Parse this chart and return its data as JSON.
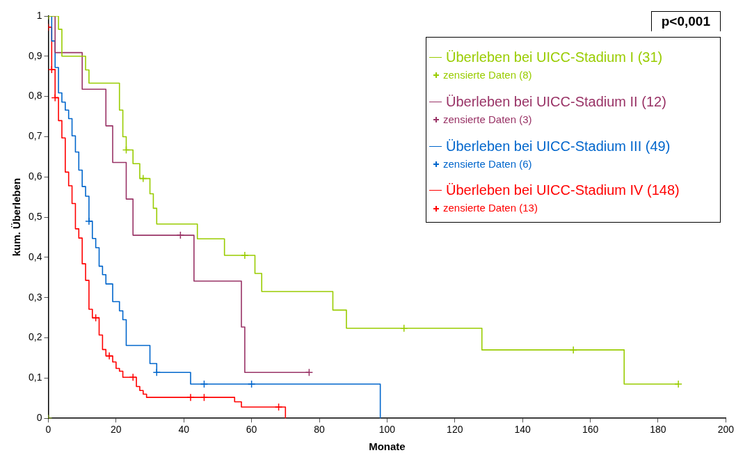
{
  "chart_data": {
    "type": "step",
    "xlabel": "Monate",
    "ylabel": "kum. Überleben",
    "annotations": [
      "p<0,001"
    ],
    "xlim": [
      0,
      200
    ],
    "xticks": [
      0,
      20,
      40,
      60,
      80,
      100,
      120,
      140,
      160,
      180,
      200
    ],
    "ylim": [
      0,
      1
    ],
    "yticks": [
      0,
      {
        "value": 0.1,
        "label": "0,1"
      },
      {
        "value": 0.2,
        "label": "0,2"
      },
      {
        "value": 0.3,
        "label": "0,3"
      },
      {
        "value": 0.4,
        "label": "0,4"
      },
      {
        "value": 0.5,
        "label": "0,5"
      },
      {
        "value": 0.6,
        "label": "0,6"
      },
      {
        "value": 0.7,
        "label": "0,7"
      },
      {
        "value": 0.8,
        "label": "0,8"
      },
      {
        "value": 0.9,
        "label": "0,9"
      },
      1
    ],
    "grid": false,
    "legend": "top right",
    "series": [
      {
        "name": "Überleben bei UICC-Stadium I (31)",
        "color": "#99cc00",
        "marker": "none",
        "x": [
          0,
          3,
          4,
          11,
          12,
          21,
          22,
          23,
          25,
          27,
          30,
          31,
          32,
          44,
          52,
          61,
          63,
          84,
          88,
          128,
          170,
          186
        ],
        "values": [
          1,
          0.967,
          0.9,
          0.866,
          0.833,
          0.766,
          0.7,
          0.667,
          0.633,
          0.596,
          0.558,
          0.522,
          0.483,
          0.446,
          0.405,
          0.36,
          0.315,
          0.269,
          0.224,
          0.17,
          0.085,
          0.085
        ]
      },
      {
        "type": "scatter",
        "name": "zensierte Daten (8)",
        "color": "#99cc00",
        "marker": "cross",
        "x": [
          0,
          0,
          23,
          28,
          58,
          105,
          155,
          186
        ],
        "values": [
          0,
          1,
          0.667,
          0.596,
          0.405,
          0.224,
          0.17,
          0.085
        ]
      },
      {
        "name": "Überleben bei UICC-Stadium II (12)",
        "color": "#993366",
        "marker": "none",
        "x": [
          0,
          2,
          10,
          17,
          19,
          23,
          25,
          43,
          57,
          58,
          77
        ],
        "values": [
          1,
          0.909,
          0.818,
          0.727,
          0.636,
          0.545,
          0.455,
          0.341,
          0.227,
          0.114,
          0.114
        ]
      },
      {
        "type": "scatter",
        "name": "zensierte Daten (3)",
        "color": "#993366",
        "marker": "cross",
        "x": [
          39,
          77
        ],
        "values": [
          0.455,
          0.114
        ]
      },
      {
        "name": "Überleben bei UICC-Stadium III (49)",
        "color": "#0066cc",
        "marker": "none",
        "x": [
          0,
          1,
          2,
          3,
          4,
          5,
          6,
          7,
          8,
          9,
          10,
          11,
          12,
          13,
          14,
          15,
          16,
          17,
          19,
          21,
          22,
          23,
          30,
          32,
          42,
          98
        ],
        "values": [
          1,
          0.938,
          0.872,
          0.809,
          0.786,
          0.766,
          0.745,
          0.702,
          0.662,
          0.617,
          0.576,
          0.552,
          0.49,
          0.447,
          0.424,
          0.378,
          0.357,
          0.334,
          0.29,
          0.267,
          0.245,
          0.181,
          0.136,
          0.114,
          0.085,
          0
        ]
      },
      {
        "type": "scatter",
        "name": "zensierte Daten (6)",
        "color": "#0066cc",
        "marker": "cross",
        "x": [
          12,
          32,
          46,
          60
        ],
        "values": [
          0.49,
          0.114,
          0.085,
          0.085
        ]
      },
      {
        "name": "Überleben bei UICC-Stadium IV (148)",
        "color": "#ff0000",
        "marker": "none",
        "x": [
          0,
          1,
          2,
          3,
          4,
          5,
          6,
          7,
          8,
          9,
          10,
          11,
          12,
          13,
          15,
          16,
          17,
          19,
          20,
          21,
          22,
          26,
          27,
          28,
          29,
          55,
          57,
          70
        ],
        "values": [
          0.972,
          0.867,
          0.797,
          0.74,
          0.697,
          0.612,
          0.578,
          0.534,
          0.471,
          0.448,
          0.384,
          0.343,
          0.271,
          0.25,
          0.207,
          0.171,
          0.155,
          0.14,
          0.124,
          0.117,
          0.102,
          0.079,
          0.069,
          0.06,
          0.052,
          0.041,
          0.028,
          0
        ]
      },
      {
        "type": "scatter",
        "name": "zensierte Daten (13)",
        "color": "#ff0000",
        "marker": "cross",
        "x": [
          0,
          1,
          2,
          14,
          18,
          25,
          42,
          46,
          68
        ],
        "values": [
          0.972,
          0.867,
          0.797,
          0.25,
          0.155,
          0.102,
          0.052,
          0.052,
          0.028
        ]
      }
    ]
  }
}
